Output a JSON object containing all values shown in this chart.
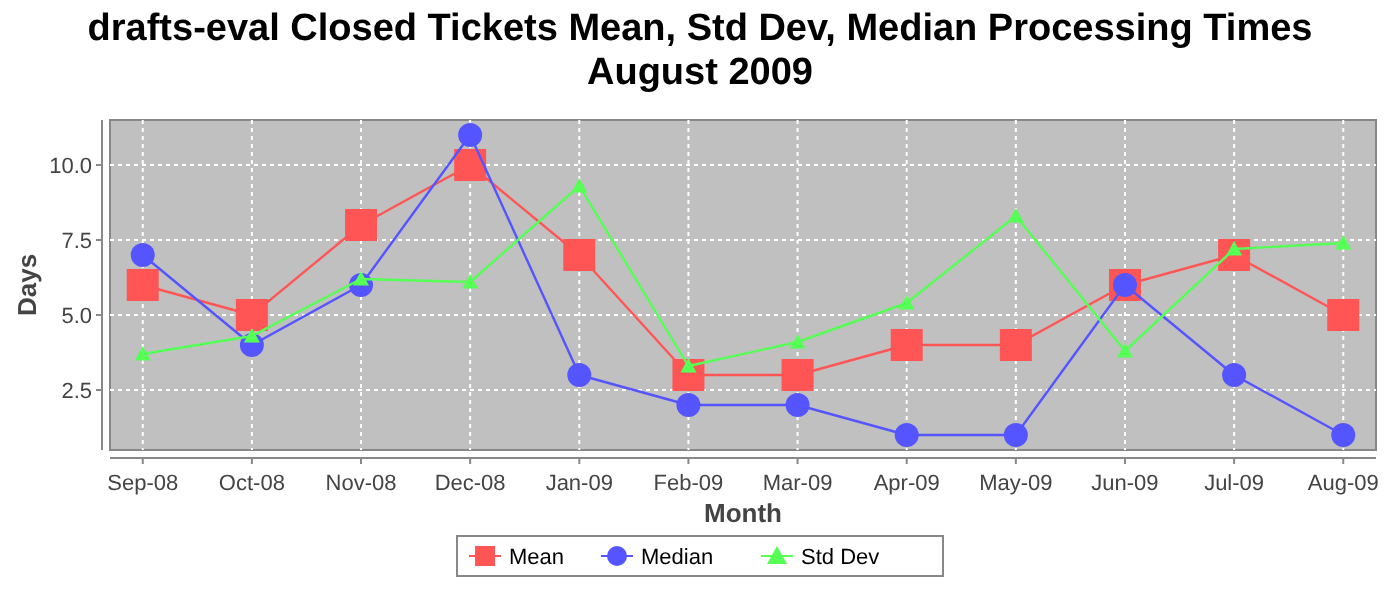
{
  "chart_data": {
    "type": "line",
    "title": "drafts-eval Closed Tickets Mean, Std Dev, Median Processing Times\nAugust 2009",
    "xlabel": "Month",
    "ylabel": "Days",
    "categories": [
      "Sep-08",
      "Oct-08",
      "Nov-08",
      "Dec-08",
      "Jan-09",
      "Feb-09",
      "Mar-09",
      "Apr-09",
      "May-09",
      "Jun-09",
      "Jul-09",
      "Aug-09"
    ],
    "series": [
      {
        "name": "Mean",
        "color": "#ff5555",
        "marker": "square",
        "values": [
          6,
          5,
          8,
          10,
          7,
          3,
          3,
          4,
          4,
          6,
          7,
          5
        ]
      },
      {
        "name": "Median",
        "color": "#5555ff",
        "marker": "circle",
        "values": [
          7,
          4,
          6,
          11,
          3,
          2,
          2,
          1,
          1,
          6,
          3,
          1
        ]
      },
      {
        "name": "Std Dev",
        "color": "#55ff55",
        "marker": "triangle",
        "values": [
          3.7,
          4.3,
          6.2,
          6.1,
          9.3,
          3.3,
          4.1,
          5.4,
          8.3,
          3.8,
          7.2,
          7.4
        ]
      }
    ],
    "ylim": [
      0.5,
      11.5
    ],
    "yticks": [
      {
        "value": 2.5,
        "label": "2.5"
      },
      {
        "value": 5,
        "label": "5.0"
      },
      {
        "value": 7.5,
        "label": "7.5"
      },
      {
        "value": 10,
        "label": "10.0"
      }
    ],
    "grid": true,
    "legend": "bottom"
  }
}
